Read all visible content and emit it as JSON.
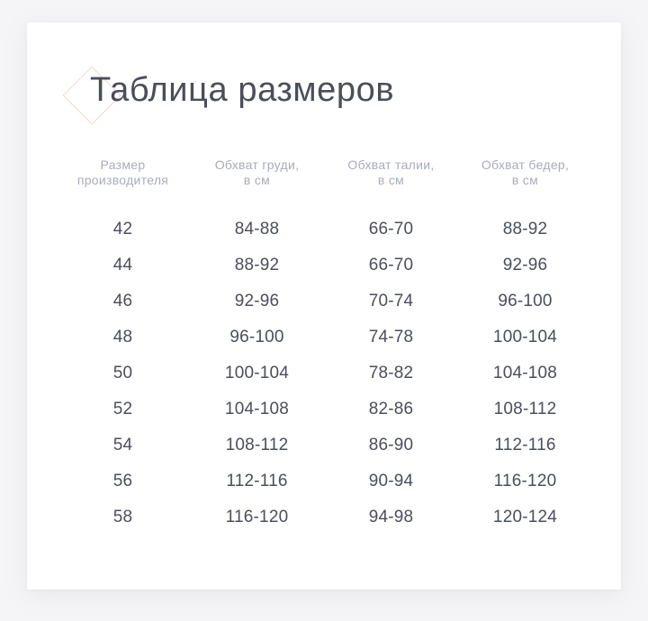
{
  "page": {
    "title": "Таблица размеров"
  },
  "table": {
    "columns": [
      {
        "line1": "Размер",
        "line2": "производителя"
      },
      {
        "line1": "Обхват груди,",
        "line2": "в см"
      },
      {
        "line1": "Обхват талии,",
        "line2": "в см"
      },
      {
        "line1": "Обхват бедер,",
        "line2": "в см"
      }
    ],
    "rows": [
      [
        "42",
        "84-88",
        "66-70",
        "88-92"
      ],
      [
        "44",
        "88-92",
        "66-70",
        "92-96"
      ],
      [
        "46",
        "92-96",
        "70-74",
        "96-100"
      ],
      [
        "48",
        "96-100",
        "74-78",
        "100-104"
      ],
      [
        "50",
        "100-104",
        "78-82",
        "104-108"
      ],
      [
        "52",
        "104-108",
        "82-86",
        "108-112"
      ],
      [
        "54",
        "108-112",
        "86-90",
        "112-116"
      ],
      [
        "56",
        "112-116",
        "90-94",
        "116-120"
      ],
      [
        "58",
        "116-120",
        "94-98",
        "120-124"
      ]
    ]
  },
  "colors": {
    "background": "#f5f5f7",
    "card": "#ffffff",
    "title_text": "#4a4e59",
    "header_text": "#a8adb9",
    "cell_text": "#4a4f5a",
    "diamond_border": "#f3dacf"
  }
}
